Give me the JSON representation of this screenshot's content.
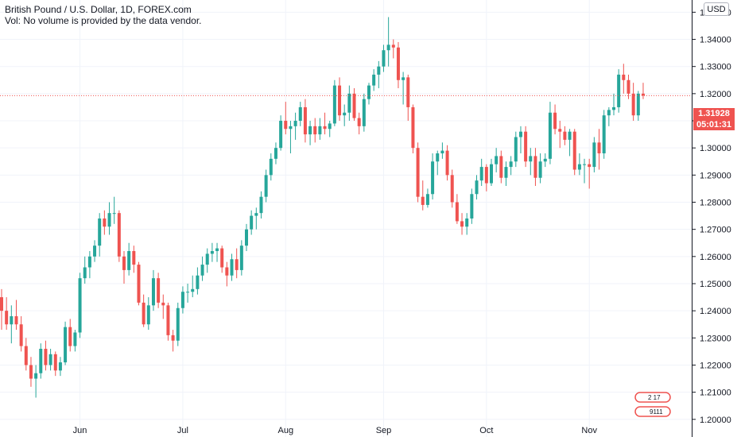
{
  "header": {
    "title": "British Pound / U.S. Dollar, 1D, FOREX.com",
    "volume_note": "Vol: No volume is provided by the data vendor."
  },
  "currency_button": {
    "label": "USD"
  },
  "last_price": {
    "value": "1.31928",
    "countdown": "05:01:31"
  },
  "colors": {
    "up": "#26a69a",
    "down": "#ef5350",
    "grid": "#f0f3fa",
    "axis_text": "#131722"
  },
  "logo": {
    "text_top": "2 17",
    "text_bottom": "9111"
  },
  "chart_data": {
    "type": "candlestick",
    "title": "British Pound / U.S. Dollar, 1D, FOREX.com",
    "xlabel": "",
    "ylabel": "",
    "ylim": [
      1.1935,
      1.3545
    ],
    "y_ticks": [
      "1.35000",
      "1.34000",
      "1.33000",
      "1.32000",
      "1.31000",
      "1.30000",
      "1.29000",
      "1.28000",
      "1.27000",
      "1.26000",
      "1.25000",
      "1.24000",
      "1.23000",
      "1.22000",
      "1.21000",
      "1.20000"
    ],
    "x_ticks": [
      {
        "label": "Jun",
        "index": 16
      },
      {
        "label": "Jul",
        "index": 37
      },
      {
        "label": "Aug",
        "index": 58
      },
      {
        "label": "Sep",
        "index": 78
      },
      {
        "label": "Oct",
        "index": 99
      },
      {
        "label": "Nov",
        "index": 120
      }
    ],
    "last_price_line": 1.31928,
    "candles": [
      [
        1.245,
        1.248,
        1.233,
        1.24
      ],
      [
        1.24,
        1.245,
        1.233,
        1.235
      ],
      [
        1.235,
        1.242,
        1.228,
        1.238
      ],
      [
        1.238,
        1.244,
        1.233,
        1.235
      ],
      [
        1.235,
        1.238,
        1.225,
        1.227
      ],
      [
        1.227,
        1.23,
        1.218,
        1.22
      ],
      [
        1.22,
        1.223,
        1.212,
        1.215
      ],
      [
        1.215,
        1.22,
        1.208,
        1.217
      ],
      [
        1.217,
        1.228,
        1.215,
        1.226
      ],
      [
        1.226,
        1.229,
        1.218,
        1.22
      ],
      [
        1.22,
        1.226,
        1.218,
        1.224
      ],
      [
        1.224,
        1.225,
        1.216,
        1.218
      ],
      [
        1.218,
        1.223,
        1.216,
        1.221
      ],
      [
        1.221,
        1.236,
        1.22,
        1.234
      ],
      [
        1.234,
        1.237,
        1.225,
        1.227
      ],
      [
        1.227,
        1.233,
        1.225,
        1.232
      ],
      [
        1.232,
        1.254,
        1.23,
        1.252
      ],
      [
        1.252,
        1.26,
        1.25,
        1.256
      ],
      [
        1.256,
        1.262,
        1.252,
        1.26
      ],
      [
        1.26,
        1.266,
        1.258,
        1.264
      ],
      [
        1.264,
        1.276,
        1.26,
        1.274
      ],
      [
        1.274,
        1.277,
        1.268,
        1.271
      ],
      [
        1.271,
        1.28,
        1.268,
        1.276
      ],
      [
        1.276,
        1.282,
        1.272,
        1.276
      ],
      [
        1.276,
        1.277,
        1.258,
        1.26
      ],
      [
        1.26,
        1.262,
        1.25,
        1.255
      ],
      [
        1.255,
        1.265,
        1.253,
        1.262
      ],
      [
        1.262,
        1.264,
        1.254,
        1.257
      ],
      [
        1.257,
        1.258,
        1.242,
        1.243
      ],
      [
        1.243,
        1.246,
        1.234,
        1.235
      ],
      [
        1.235,
        1.245,
        1.233,
        1.242
      ],
      [
        1.242,
        1.255,
        1.24,
        1.252
      ],
      [
        1.252,
        1.254,
        1.241,
        1.243
      ],
      [
        1.243,
        1.246,
        1.237,
        1.242
      ],
      [
        1.242,
        1.243,
        1.229,
        1.231
      ],
      [
        1.231,
        1.233,
        1.225,
        1.229
      ],
      [
        1.229,
        1.243,
        1.227,
        1.241
      ],
      [
        1.241,
        1.249,
        1.239,
        1.247
      ],
      [
        1.247,
        1.25,
        1.243,
        1.247
      ],
      [
        1.247,
        1.253,
        1.245,
        1.248
      ],
      [
        1.248,
        1.256,
        1.246,
        1.253
      ],
      [
        1.253,
        1.26,
        1.251,
        1.257
      ],
      [
        1.257,
        1.263,
        1.254,
        1.261
      ],
      [
        1.261,
        1.265,
        1.258,
        1.262
      ],
      [
        1.262,
        1.265,
        1.258,
        1.263
      ],
      [
        1.263,
        1.264,
        1.254,
        1.256
      ],
      [
        1.256,
        1.258,
        1.249,
        1.253
      ],
      [
        1.253,
        1.261,
        1.251,
        1.259
      ],
      [
        1.259,
        1.263,
        1.252,
        1.255
      ],
      [
        1.255,
        1.266,
        1.253,
        1.264
      ],
      [
        1.264,
        1.272,
        1.262,
        1.27
      ],
      [
        1.27,
        1.277,
        1.268,
        1.275
      ],
      [
        1.275,
        1.278,
        1.27,
        1.276
      ],
      [
        1.276,
        1.284,
        1.274,
        1.282
      ],
      [
        1.282,
        1.292,
        1.28,
        1.29
      ],
      [
        1.29,
        1.298,
        1.288,
        1.296
      ],
      [
        1.296,
        1.302,
        1.294,
        1.3
      ],
      [
        1.3,
        1.312,
        1.299,
        1.31
      ],
      [
        1.31,
        1.317,
        1.305,
        1.307
      ],
      [
        1.307,
        1.31,
        1.298,
        1.308
      ],
      [
        1.308,
        1.313,
        1.303,
        1.31
      ],
      [
        1.31,
        1.317,
        1.308,
        1.315
      ],
      [
        1.315,
        1.318,
        1.302,
        1.305
      ],
      [
        1.305,
        1.31,
        1.301,
        1.308
      ],
      [
        1.308,
        1.311,
        1.302,
        1.305
      ],
      [
        1.305,
        1.311,
        1.303,
        1.308
      ],
      [
        1.308,
        1.313,
        1.305,
        1.307
      ],
      [
        1.307,
        1.31,
        1.304,
        1.309
      ],
      [
        1.309,
        1.325,
        1.308,
        1.323
      ],
      [
        1.323,
        1.326,
        1.31,
        1.312
      ],
      [
        1.312,
        1.316,
        1.308,
        1.313
      ],
      [
        1.313,
        1.323,
        1.31,
        1.32
      ],
      [
        1.32,
        1.322,
        1.31,
        1.311
      ],
      [
        1.311,
        1.313,
        1.305,
        1.308
      ],
      [
        1.308,
        1.32,
        1.306,
        1.318
      ],
      [
        1.318,
        1.324,
        1.316,
        1.323
      ],
      [
        1.323,
        1.329,
        1.321,
        1.327
      ],
      [
        1.327,
        1.332,
        1.322,
        1.33
      ],
      [
        1.33,
        1.338,
        1.328,
        1.336
      ],
      [
        1.336,
        1.3482,
        1.33,
        1.338
      ],
      [
        1.338,
        1.34,
        1.333,
        1.337
      ],
      [
        1.337,
        1.339,
        1.322,
        1.325
      ],
      [
        1.325,
        1.328,
        1.316,
        1.326
      ],
      [
        1.326,
        1.327,
        1.31,
        1.315
      ],
      [
        1.315,
        1.316,
        1.298,
        1.3
      ],
      [
        1.3,
        1.302,
        1.28,
        1.282
      ],
      [
        1.282,
        1.288,
        1.277,
        1.279
      ],
      [
        1.279,
        1.285,
        1.278,
        1.283
      ],
      [
        1.283,
        1.298,
        1.281,
        1.295
      ],
      [
        1.295,
        1.299,
        1.29,
        1.298
      ],
      [
        1.298,
        1.302,
        1.296,
        1.299
      ],
      [
        1.299,
        1.301,
        1.288,
        1.29
      ],
      [
        1.29,
        1.292,
        1.278,
        1.28
      ],
      [
        1.28,
        1.283,
        1.272,
        1.273
      ],
      [
        1.273,
        1.276,
        1.268,
        1.271
      ],
      [
        1.271,
        1.276,
        1.268,
        1.274
      ],
      [
        1.274,
        1.285,
        1.272,
        1.283
      ],
      [
        1.283,
        1.29,
        1.281,
        1.288
      ],
      [
        1.288,
        1.296,
        1.286,
        1.293
      ],
      [
        1.293,
        1.294,
        1.284,
        1.287
      ],
      [
        1.287,
        1.296,
        1.286,
        1.294
      ],
      [
        1.294,
        1.3,
        1.291,
        1.297
      ],
      [
        1.297,
        1.299,
        1.287,
        1.289
      ],
      [
        1.289,
        1.295,
        1.286,
        1.293
      ],
      [
        1.293,
        1.297,
        1.29,
        1.295
      ],
      [
        1.295,
        1.306,
        1.293,
        1.304
      ],
      [
        1.304,
        1.308,
        1.298,
        1.306
      ],
      [
        1.306,
        1.308,
        1.293,
        1.295
      ],
      [
        1.295,
        1.3,
        1.29,
        1.297
      ],
      [
        1.297,
        1.3,
        1.286,
        1.289
      ],
      [
        1.289,
        1.298,
        1.287,
        1.295
      ],
      [
        1.295,
        1.298,
        1.293,
        1.296
      ],
      [
        1.296,
        1.317,
        1.294,
        1.313
      ],
      [
        1.313,
        1.316,
        1.305,
        1.307
      ],
      [
        1.307,
        1.31,
        1.3,
        1.306
      ],
      [
        1.306,
        1.308,
        1.301,
        1.303
      ],
      [
        1.303,
        1.307,
        1.297,
        1.306
      ],
      [
        1.306,
        1.307,
        1.29,
        1.292
      ],
      [
        1.292,
        1.298,
        1.29,
        1.294
      ],
      [
        1.294,
        1.296,
        1.287,
        1.294
      ],
      [
        1.294,
        1.296,
        1.285,
        1.293
      ],
      [
        1.293,
        1.304,
        1.291,
        1.302
      ],
      [
        1.302,
        1.307,
        1.292,
        1.298
      ],
      [
        1.298,
        1.314,
        1.296,
        1.312
      ],
      [
        1.312,
        1.315,
        1.308,
        1.314
      ],
      [
        1.314,
        1.32,
        1.312,
        1.315
      ],
      [
        1.315,
        1.329,
        1.313,
        1.327
      ],
      [
        1.327,
        1.331,
        1.32,
        1.325
      ],
      [
        1.325,
        1.327,
        1.318,
        1.32
      ],
      [
        1.32,
        1.324,
        1.31,
        1.312
      ],
      [
        1.312,
        1.321,
        1.31,
        1.32
      ],
      [
        1.32,
        1.324,
        1.318,
        1.3193
      ]
    ]
  }
}
